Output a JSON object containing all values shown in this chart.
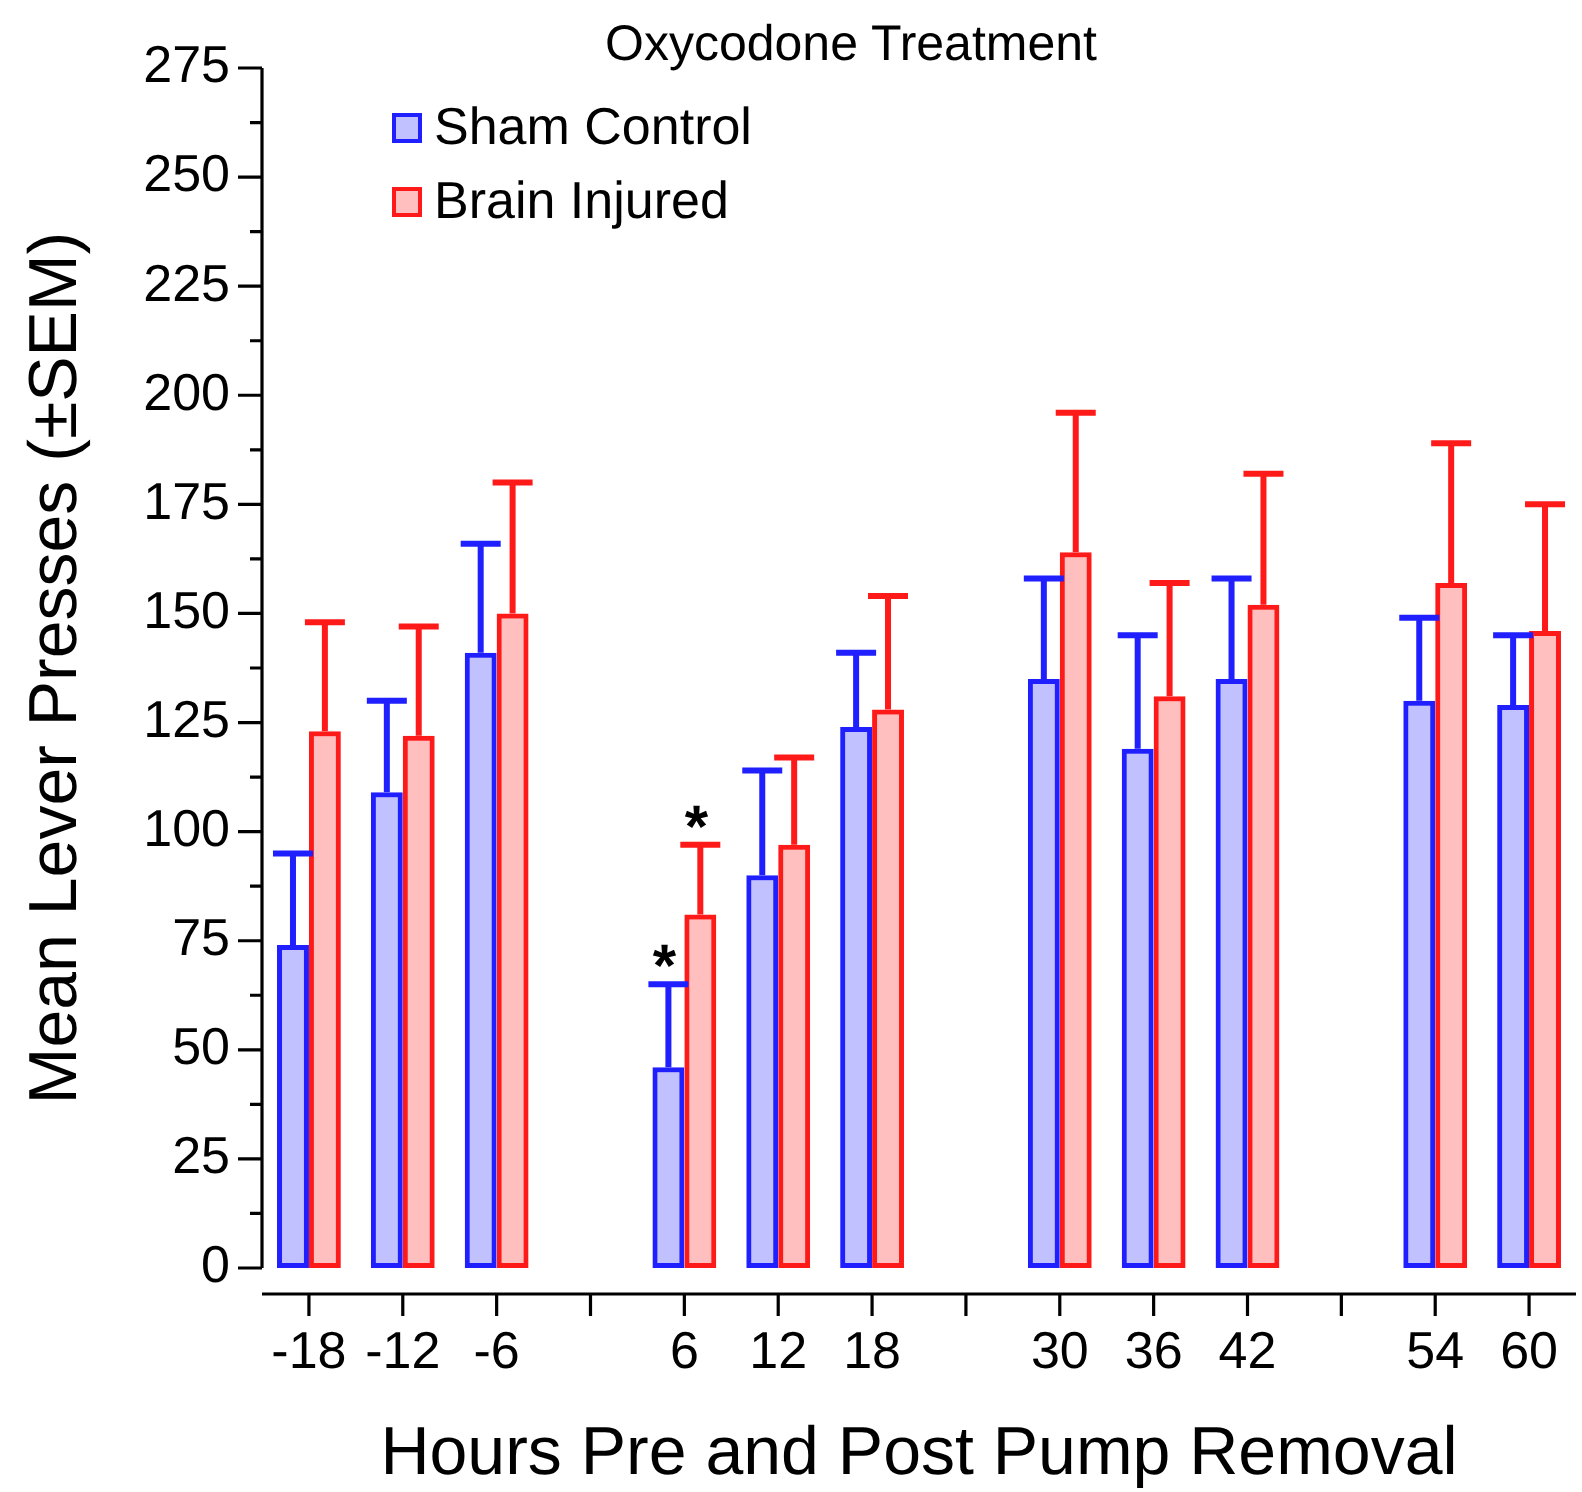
{
  "chart_data": {
    "type": "bar",
    "title": "Oxycodone Treatment",
    "xlabel": "Hours Pre and Post Pump Removal",
    "ylabel": "Mean Lever Presses (±SEM)",
    "categories": [
      "-18",
      "-12",
      "-6",
      null,
      "6",
      "12",
      "18",
      null,
      "30",
      "36",
      "42",
      null,
      "54",
      "60"
    ],
    "series": [
      {
        "name": "Sham Control",
        "color": "#1f1fff",
        "values": [
          74,
          109,
          141,
          null,
          46,
          90,
          124,
          null,
          135,
          119,
          135,
          null,
          130,
          129
        ],
        "errors": [
          [
            74,
            95
          ],
          [
            109,
            130
          ],
          [
            141,
            166
          ],
          null,
          [
            46,
            65
          ],
          [
            90,
            114
          ],
          [
            124,
            141
          ],
          null,
          [
            135,
            158
          ],
          [
            119,
            145
          ],
          [
            135,
            158
          ],
          null,
          [
            130,
            149
          ],
          [
            129,
            145
          ]
        ]
      },
      {
        "name": "Brain Injured",
        "color": "#ff1a1a",
        "values": [
          123,
          122,
          150,
          null,
          81,
          97,
          128,
          null,
          164,
          131,
          152,
          null,
          157,
          146
        ],
        "errors": [
          [
            123,
            148
          ],
          [
            122,
            147
          ],
          [
            150,
            180
          ],
          null,
          [
            81,
            97
          ],
          [
            97,
            117
          ],
          [
            128,
            154
          ],
          null,
          [
            164,
            196
          ],
          [
            131,
            157
          ],
          [
            152,
            182
          ],
          null,
          [
            157,
            189
          ],
          [
            146,
            175
          ]
        ]
      }
    ],
    "ylim": [
      0,
      275
    ],
    "yticks": [
      0,
      {
        "value": 12.5,
        "label": null
      },
      25,
      {
        "value": 37.5,
        "label": null
      },
      50,
      {
        "value": 62.5,
        "label": null
      },
      75,
      {
        "value": 87.5,
        "label": null
      },
      100,
      {
        "value": 112.5,
        "label": null
      },
      125,
      {
        "value": 137.5,
        "label": null
      },
      150,
      {
        "value": 162.5,
        "label": null
      },
      175,
      {
        "value": 187.5,
        "label": null
      },
      200,
      {
        "value": 212.5,
        "label": null
      },
      225,
      {
        "value": 237.5,
        "label": null
      },
      250,
      {
        "value": 262.5,
        "label": null
      },
      275
    ],
    "legend": "top left",
    "annotations": [
      {
        "text": "*",
        "x": "6",
        "y": 65
      },
      {
        "text": "*",
        "x": "6",
        "y": 97
      }
    ]
  }
}
